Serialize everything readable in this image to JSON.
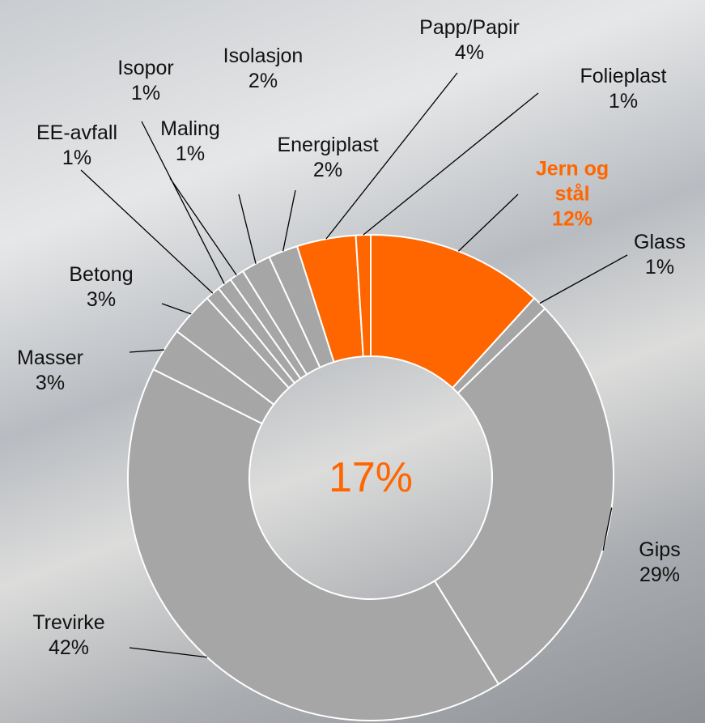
{
  "chart_data": {
    "type": "donut",
    "categories": [
      "Jern og stål",
      "Glass",
      "Gips",
      "Trevirke",
      "Masser",
      "Betong",
      "EE-avfall",
      "Isopor",
      "Maling",
      "Isolasjon",
      "Energiplast",
      "Papp/Papir",
      "Folieplast"
    ],
    "values": [
      12,
      1,
      29,
      42,
      3,
      3,
      1,
      1,
      1,
      2,
      2,
      4,
      1
    ],
    "value_labels": [
      "12%",
      "1%",
      "29%",
      "42%",
      "3%",
      "3%",
      "1%",
      "1%",
      "1%",
      "2%",
      "2%",
      "4%",
      "1%"
    ],
    "colors": [
      "#ff6600",
      "#a6a6a6",
      "#a6a6a6",
      "#a6a6a6",
      "#a6a6a6",
      "#a6a6a6",
      "#a6a6a6",
      "#a6a6a6",
      "#a6a6a6",
      "#a6a6a6",
      "#a6a6a6",
      "#ff6600",
      "#ff6600"
    ],
    "highlight": [
      true,
      false,
      false,
      false,
      false,
      false,
      false,
      false,
      false,
      false,
      false,
      false,
      false
    ],
    "center_label": "17%",
    "center_color": "#ff6600"
  }
}
